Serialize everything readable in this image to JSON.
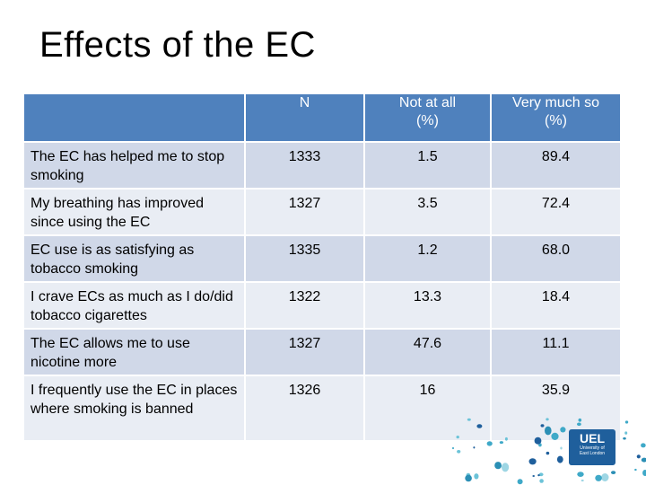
{
  "slide": {
    "title": "Effects of the EC"
  },
  "table": {
    "headers": [
      "",
      "N",
      "Not at all\n(%)",
      "Very much so\n(%)"
    ],
    "header_n": "N",
    "header_not_at_all": "Not at all",
    "header_not_at_all_unit": "(%)",
    "header_very_much": "Very much so",
    "header_very_much_unit": "(%)",
    "rows": [
      {
        "statement": "The EC has helped me to stop smoking",
        "n": "1333",
        "not_at_all": "1.5",
        "very_much": "89.4"
      },
      {
        "statement": "My breathing has improved since using the EC",
        "n": "1327",
        "not_at_all": "3.5",
        "very_much": "72.4"
      },
      {
        "statement": "EC use is as satisfying as tobacco smoking",
        "n": "1335",
        "not_at_all": "1.2",
        "very_much": "68.0"
      },
      {
        "statement": "I crave ECs as much as I do/did tobacco cigarettes",
        "n": "1322",
        "not_at_all": "13.3",
        "very_much": "18.4"
      },
      {
        "statement": "The EC allows me to use nicotine more",
        "n": "1327",
        "not_at_all": "47.6",
        "very_much": "11.1"
      },
      {
        "statement": "I frequently use the EC in places where smoking is banned",
        "n": "1326",
        "not_at_all": "16",
        "very_much": "35.9"
      }
    ]
  },
  "logo": {
    "name": "UEL",
    "subtitle_line1": "University of",
    "subtitle_line2": "East London"
  },
  "colors": {
    "header_bg": "#4f81bd",
    "row_dark": "#d0d8e8",
    "row_light": "#e9edf4",
    "logo_blue": "#1f5f9c",
    "dot_teal": "#3fa9c8"
  }
}
